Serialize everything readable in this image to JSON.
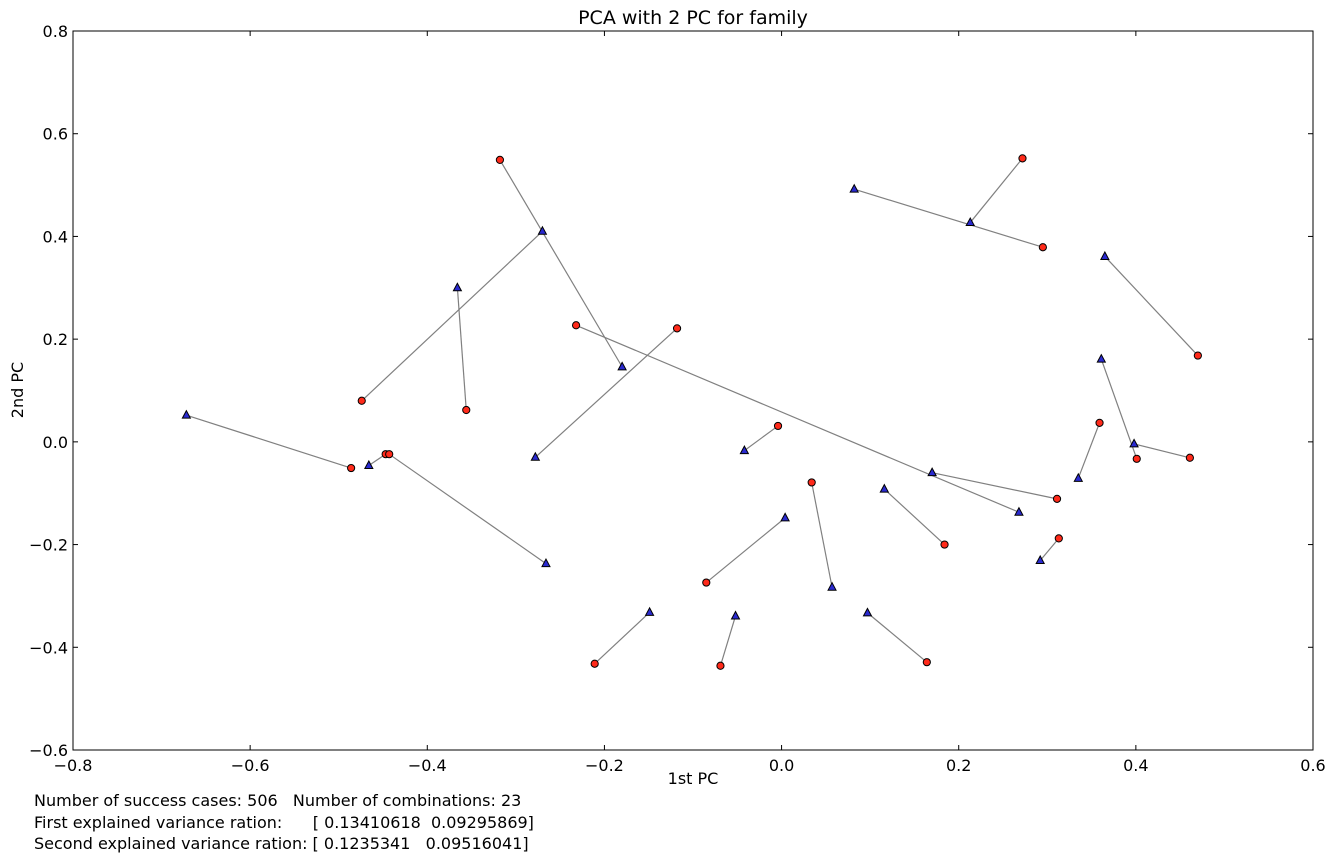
{
  "chart_data": {
    "type": "scatter",
    "title": "PCA with 2 PC for family",
    "xlabel": "1st PC",
    "ylabel": "2nd PC",
    "xlim": [
      -0.8,
      0.6
    ],
    "ylim": [
      -0.6,
      0.8
    ],
    "xticks": [
      -0.8,
      -0.6,
      -0.4,
      -0.2,
      0.0,
      0.2,
      0.4,
      0.6
    ],
    "xtick_labels": [
      "−0.8",
      "−0.6",
      "−0.4",
      "−0.2",
      "0.0",
      "0.2",
      "0.4",
      "0.6"
    ],
    "yticks": [
      -0.6,
      -0.4,
      -0.2,
      0.0,
      0.2,
      0.4,
      0.6,
      0.8
    ],
    "ytick_labels": [
      "−0.6",
      "−0.4",
      "−0.2",
      "0.0",
      "0.2",
      "0.4",
      "0.6",
      "0.8"
    ],
    "grid": false,
    "circle_color": "#ff2a1a",
    "triangle_color": "#2a2ad0",
    "line_color": "#808080",
    "pairs": [
      {
        "circle": [
          0.272,
          0.552
        ],
        "triangle": [
          0.213,
          0.427
        ]
      },
      {
        "circle": [
          0.295,
          0.379
        ],
        "triangle": [
          0.082,
          0.492
        ]
      },
      {
        "circle": [
          -0.318,
          0.549
        ],
        "triangle": [
          -0.18,
          0.146
        ]
      },
      {
        "circle": [
          -0.474,
          0.08
        ],
        "triangle": [
          -0.27,
          0.41
        ]
      },
      {
        "circle": [
          -0.356,
          0.062
        ],
        "triangle": [
          -0.366,
          0.3
        ]
      },
      {
        "circle": [
          -0.118,
          0.221
        ],
        "triangle": [
          -0.278,
          -0.03
        ]
      },
      {
        "circle": [
          -0.232,
          0.227
        ],
        "triangle": [
          0.268,
          -0.137
        ]
      },
      {
        "circle": [
          0.47,
          0.168
        ],
        "triangle": [
          0.365,
          0.361
        ]
      },
      {
        "circle": [
          -0.486,
          -0.051
        ],
        "triangle": [
          -0.672,
          0.052
        ]
      },
      {
        "circle": [
          -0.447,
          -0.024
        ],
        "triangle": [
          -0.466,
          -0.046
        ]
      },
      {
        "circle": [
          -0.443,
          -0.024
        ],
        "triangle": [
          -0.266,
          -0.237
        ]
      },
      {
        "circle": [
          -0.004,
          0.031
        ],
        "triangle": [
          -0.042,
          -0.017
        ]
      },
      {
        "circle": [
          0.401,
          -0.033
        ],
        "triangle": [
          0.361,
          0.161
        ]
      },
      {
        "circle": [
          0.461,
          -0.031
        ],
        "triangle": [
          0.398,
          -0.004
        ]
      },
      {
        "circle": [
          0.359,
          0.037
        ],
        "triangle": [
          0.335,
          -0.071
        ]
      },
      {
        "circle": [
          0.311,
          -0.111
        ],
        "triangle": [
          0.17,
          -0.06
        ]
      },
      {
        "circle": [
          0.184,
          -0.2
        ],
        "triangle": [
          0.116,
          -0.092
        ]
      },
      {
        "circle": [
          0.313,
          -0.188
        ],
        "triangle": [
          0.292,
          -0.231
        ]
      },
      {
        "circle": [
          0.034,
          -0.079
        ],
        "triangle": [
          0.057,
          -0.283
        ]
      },
      {
        "circle": [
          -0.085,
          -0.274
        ],
        "triangle": [
          0.004,
          -0.148
        ]
      },
      {
        "circle": [
          -0.211,
          -0.432
        ],
        "triangle": [
          -0.149,
          -0.332
        ]
      },
      {
        "circle": [
          -0.069,
          -0.436
        ],
        "triangle": [
          -0.052,
          -0.339
        ]
      },
      {
        "circle": [
          0.164,
          -0.429
        ],
        "triangle": [
          0.097,
          -0.333
        ]
      }
    ]
  },
  "info": {
    "line1": "Number of success cases: 506   Number of combinations: 23",
    "line2": "First explained variance ration:      [ 0.13410618  0.09295869]",
    "line3": "Second explained variance ration: [ 0.1235341   0.09516041]"
  }
}
